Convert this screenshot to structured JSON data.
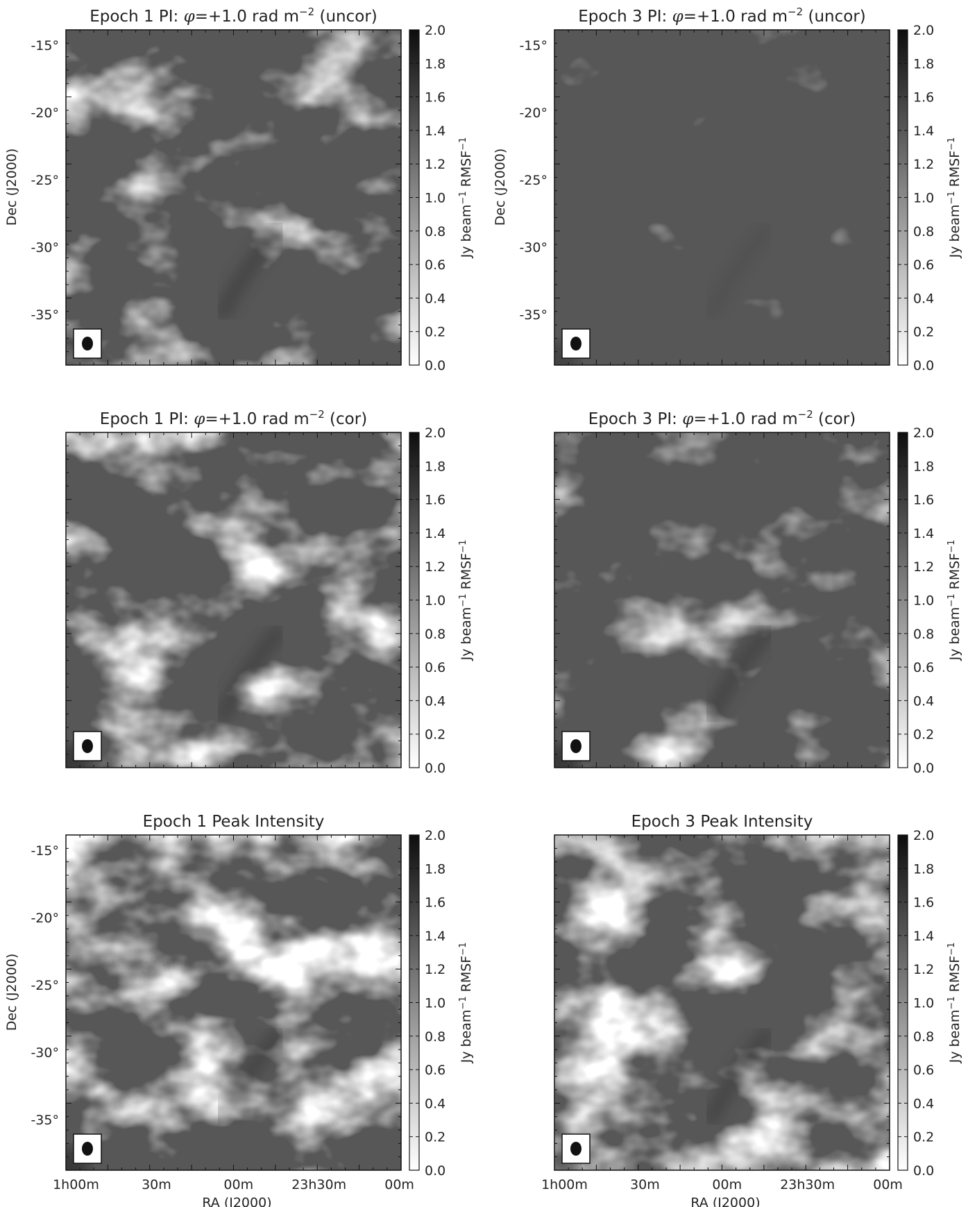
{
  "panels": [
    {
      "id": "e1-uncor",
      "title_pre": "Epoch 1 PI: ",
      "title_phi": "φ",
      "title_mid": "=+1.0 rad m",
      "title_sup": "−2",
      "title_post": " (uncor)",
      "show_dec": true,
      "show_ra": false,
      "style": "uncor",
      "seed": 11
    },
    {
      "id": "e3-uncor",
      "title_pre": "Epoch 3 PI: ",
      "title_phi": "φ",
      "title_mid": "=+1.0 rad m",
      "title_sup": "−2",
      "title_post": " (uncor)",
      "show_dec": true,
      "show_ra": false,
      "style": "faint",
      "seed": 23
    },
    {
      "id": "e1-cor",
      "title_pre": "Epoch 1 PI: ",
      "title_phi": "φ",
      "title_mid": "=+1.0 rad m",
      "title_sup": "−2",
      "title_post": " (cor)",
      "show_dec": false,
      "show_ra": false,
      "style": "cor",
      "seed": 37
    },
    {
      "id": "e3-cor",
      "title_pre": "Epoch 3 PI: ",
      "title_phi": "φ",
      "title_mid": "=+1.0 rad m",
      "title_sup": "−2",
      "title_post": " (cor)",
      "show_dec": false,
      "show_ra": false,
      "style": "cor3",
      "seed": 41
    },
    {
      "id": "e1-peak",
      "title_pre": "Epoch 1 Peak Intensity",
      "title_phi": "",
      "title_mid": "",
      "title_sup": "",
      "title_post": "",
      "show_dec": true,
      "show_ra": true,
      "style": "peak",
      "seed": 53
    },
    {
      "id": "e3-peak",
      "title_pre": "Epoch 3 Peak Intensity",
      "title_phi": "",
      "title_mid": "",
      "title_sup": "",
      "title_post": "",
      "show_dec": false,
      "show_ra": true,
      "style": "peak3",
      "seed": 67
    }
  ],
  "dec_axis_label": "Dec (J2000)",
  "ra_axis_label": "RA (J2000)",
  "dec_ticks": [
    "-15°",
    "-20°",
    "-25°",
    "-30°",
    "-35°"
  ],
  "ra_ticks": [
    "1h00m",
    "30m",
    "00m",
    "23h30m",
    "00m"
  ],
  "colorbar": {
    "label_pre": "Jy beam",
    "label_sup1": "−1",
    "label_mid": " RMSF",
    "label_sup2": "−1",
    "ticks": [
      "0.0",
      "0.2",
      "0.4",
      "0.6",
      "0.8",
      "1.0",
      "1.2",
      "1.4",
      "1.6",
      "1.8",
      "2.0"
    ],
    "range": [
      0.0,
      2.0
    ]
  }
}
